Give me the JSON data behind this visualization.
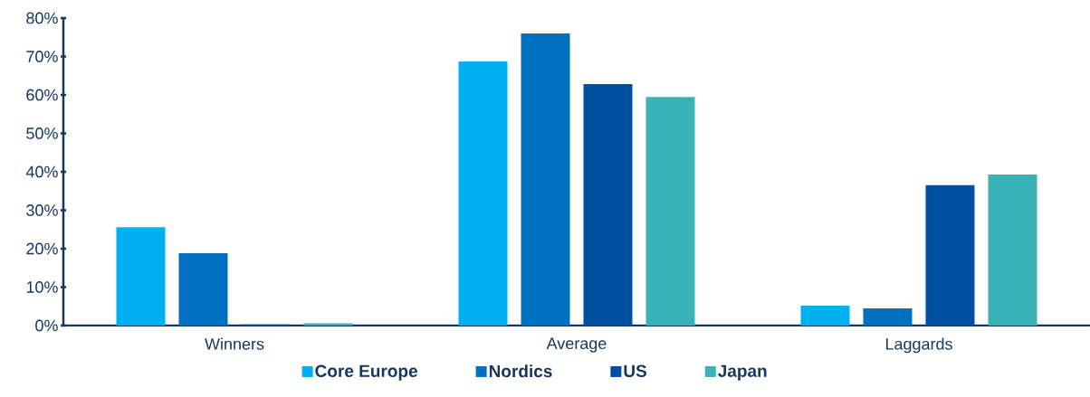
{
  "chart_data": {
    "type": "bar",
    "categories": [
      "Winners",
      "Average",
      "Laggards"
    ],
    "series": [
      {
        "name": "Core Europe",
        "color": "#00b0f0",
        "values": [
          25.6,
          68.7,
          5.2
        ]
      },
      {
        "name": "Nordics",
        "color": "#0070c0",
        "values": [
          18.8,
          76.0,
          4.5
        ]
      },
      {
        "name": "US",
        "color": "#0050a0",
        "values": [
          0.3,
          62.8,
          36.5
        ]
      },
      {
        "name": "Japan",
        "color": "#3ab3b8",
        "values": [
          0.6,
          59.5,
          39.3
        ]
      }
    ],
    "ylim": [
      0,
      80
    ],
    "yticks": [
      {
        "value": 0,
        "label": "0%"
      },
      {
        "value": 10,
        "label": "10%"
      },
      {
        "value": 20,
        "label": "20%"
      },
      {
        "value": 30,
        "label": "30%"
      },
      {
        "value": 40,
        "label": "40%"
      },
      {
        "value": 50,
        "label": "50%"
      },
      {
        "value": 60,
        "label": "60%"
      },
      {
        "value": 70,
        "label": "70%"
      },
      {
        "value": 80,
        "label": "80%"
      }
    ],
    "grid": false,
    "legend": "bottom"
  }
}
